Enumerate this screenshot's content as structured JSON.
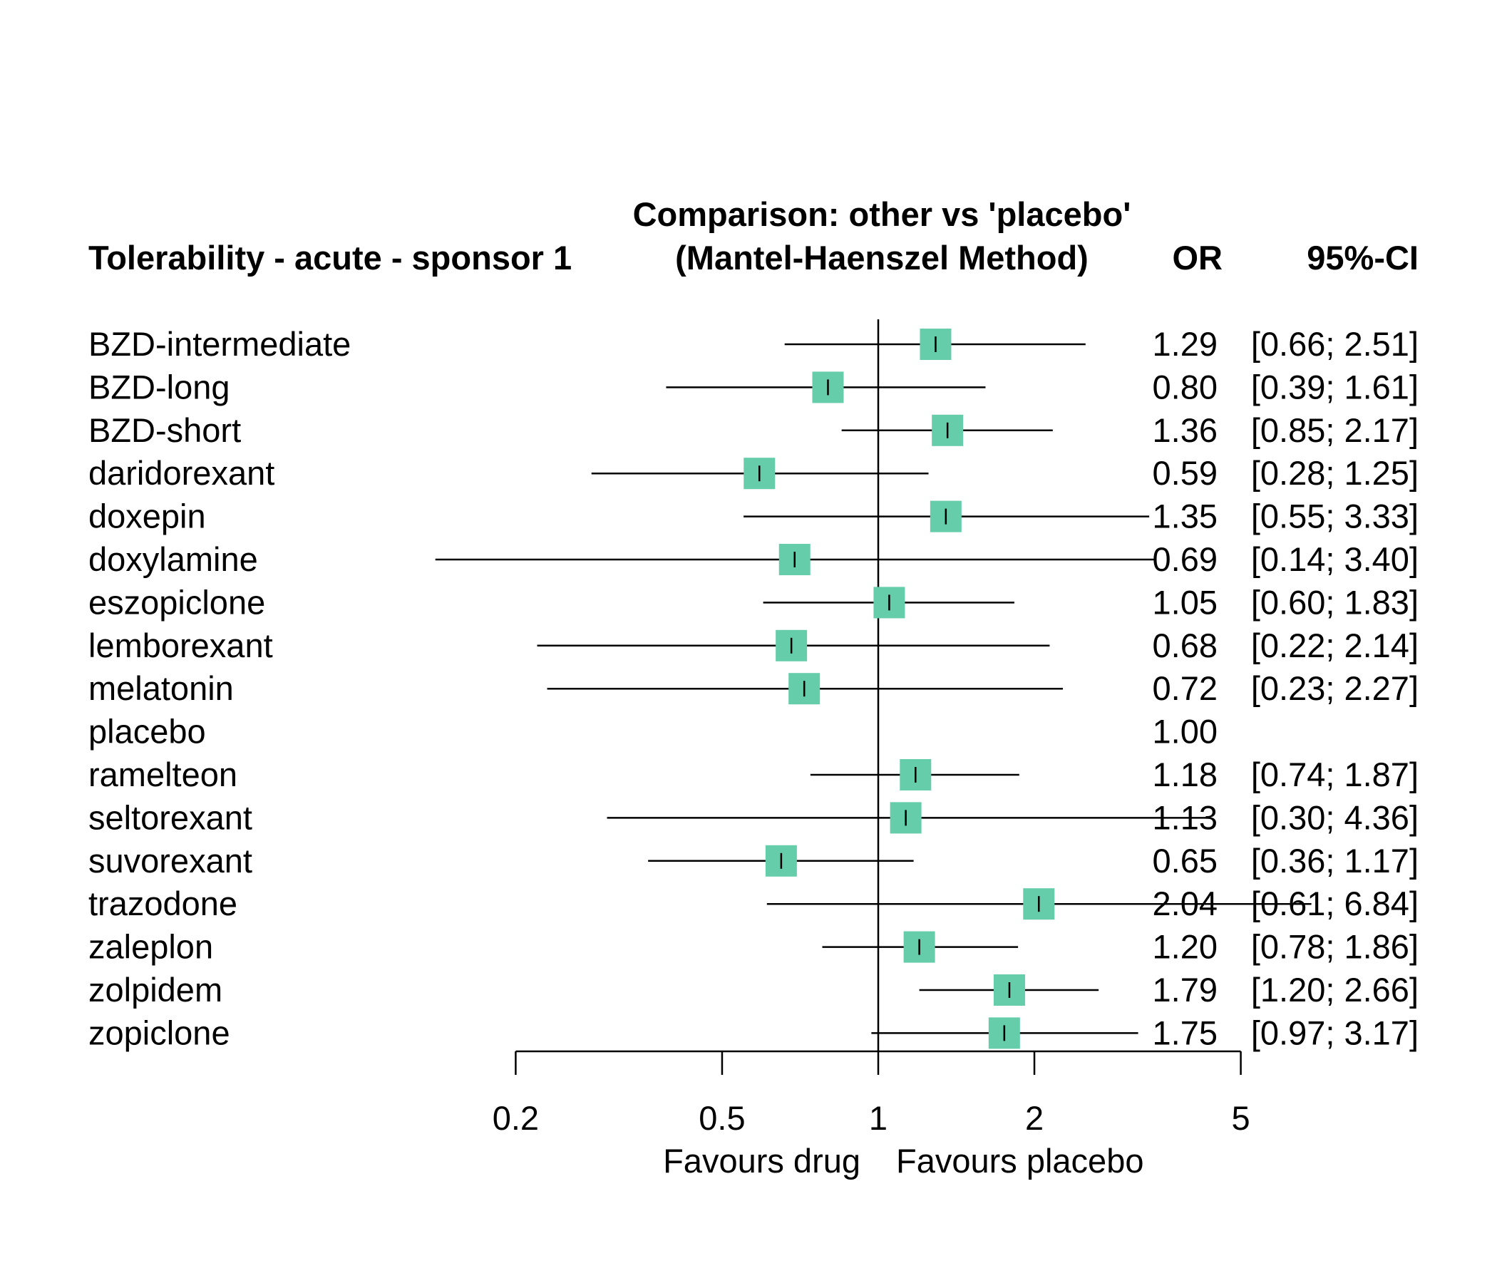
{
  "chart_data": {
    "type": "forest",
    "title_left": "Tolerability - acute - sponsor 1",
    "title_center_line1": "Comparison: other vs 'placebo'",
    "title_center_line2": "(Mantel-Haenszel Method)",
    "column_or": "OR",
    "column_ci": "95%-CI",
    "scale": "log",
    "xlim": [
      0.2,
      5
    ],
    "xticks": [
      0.2,
      0.5,
      1,
      2,
      5
    ],
    "xtick_labels": [
      "0.2",
      "0.5",
      "1",
      "2",
      "5"
    ],
    "reference_line": 1,
    "favours_left": "Favours drug",
    "favours_right": "Favours placebo",
    "marker_color": "#66CDAA",
    "rows": [
      {
        "name": "BZD-intermediate",
        "or": 1.29,
        "lo": 0.66,
        "hi": 2.51,
        "or_text": "1.29",
        "ci_text": "[0.66; 2.51]"
      },
      {
        "name": "BZD-long",
        "or": 0.8,
        "lo": 0.39,
        "hi": 1.61,
        "or_text": "0.80",
        "ci_text": "[0.39; 1.61]"
      },
      {
        "name": "BZD-short",
        "or": 1.36,
        "lo": 0.85,
        "hi": 2.17,
        "or_text": "1.36",
        "ci_text": "[0.85; 2.17]"
      },
      {
        "name": "daridorexant",
        "or": 0.59,
        "lo": 0.28,
        "hi": 1.25,
        "or_text": "0.59",
        "ci_text": "[0.28; 1.25]"
      },
      {
        "name": "doxepin",
        "or": 1.35,
        "lo": 0.55,
        "hi": 3.33,
        "or_text": "1.35",
        "ci_text": "[0.55; 3.33]"
      },
      {
        "name": "doxylamine",
        "or": 0.69,
        "lo": 0.14,
        "hi": 3.4,
        "or_text": "0.69",
        "ci_text": "[0.14; 3.40]"
      },
      {
        "name": "eszopiclone",
        "or": 1.05,
        "lo": 0.6,
        "hi": 1.83,
        "or_text": "1.05",
        "ci_text": "[0.60; 1.83]"
      },
      {
        "name": "lemborexant",
        "or": 0.68,
        "lo": 0.22,
        "hi": 2.14,
        "or_text": "0.68",
        "ci_text": "[0.22; 2.14]"
      },
      {
        "name": "melatonin",
        "or": 0.72,
        "lo": 0.23,
        "hi": 2.27,
        "or_text": "0.72",
        "ci_text": "[0.23; 2.27]"
      },
      {
        "name": "placebo",
        "or": 1.0,
        "lo": null,
        "hi": null,
        "or_text": "1.00",
        "ci_text": ""
      },
      {
        "name": "ramelteon",
        "or": 1.18,
        "lo": 0.74,
        "hi": 1.87,
        "or_text": "1.18",
        "ci_text": "[0.74; 1.87]"
      },
      {
        "name": "seltorexant",
        "or": 1.13,
        "lo": 0.3,
        "hi": 4.36,
        "or_text": "1.13",
        "ci_text": "[0.30; 4.36]"
      },
      {
        "name": "suvorexant",
        "or": 0.65,
        "lo": 0.36,
        "hi": 1.17,
        "or_text": "0.65",
        "ci_text": "[0.36; 1.17]"
      },
      {
        "name": "trazodone",
        "or": 2.04,
        "lo": 0.61,
        "hi": 6.84,
        "or_text": "2.04",
        "ci_text": "[0.61; 6.84]"
      },
      {
        "name": "zaleplon",
        "or": 1.2,
        "lo": 0.78,
        "hi": 1.86,
        "or_text": "1.20",
        "ci_text": "[0.78; 1.86]"
      },
      {
        "name": "zolpidem",
        "or": 1.79,
        "lo": 1.2,
        "hi": 2.66,
        "or_text": "1.79",
        "ci_text": "[1.20; 2.66]"
      },
      {
        "name": "zopiclone",
        "or": 1.75,
        "lo": 0.97,
        "hi": 3.17,
        "or_text": "1.75",
        "ci_text": "[0.97; 3.17]"
      }
    ]
  }
}
